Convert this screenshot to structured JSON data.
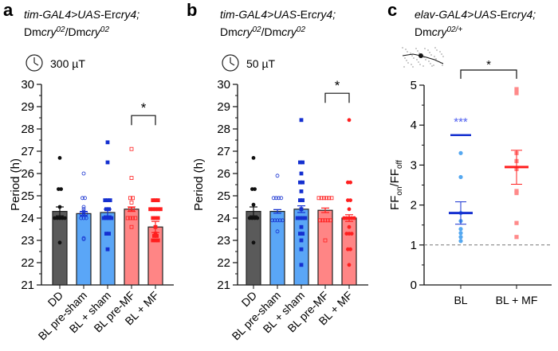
{
  "colors": {
    "grey_bar": "#5a5a5a",
    "blue_bar": "#5aa6f7",
    "red_bar": "#ff8585",
    "blue_pt": "#1530d0",
    "red_pt": "#ff1f1f",
    "light_blue_pt": "#55a8f0",
    "light_red_pt": "#ff8a8a",
    "black": "#111111"
  },
  "chart_data": [
    {
      "type": "bar",
      "panel_label": "a",
      "title_lines": [
        [
          {
            "t": "tim-GAL4>UAS-",
            "i": true
          },
          {
            "t": "Er",
            "i": false
          },
          {
            "t": "cry4;",
            "i": true
          }
        ],
        [
          {
            "t": "Dm",
            "i": false
          },
          {
            "t": "cry",
            "i": true
          },
          {
            "t": "02",
            "i": true,
            "sup": true
          },
          {
            "t": "/Dm",
            "i": false
          },
          {
            "t": "cry",
            "i": true
          },
          {
            "t": "02",
            "i": true,
            "sup": true
          }
        ]
      ],
      "condition_icon": "clock-icon",
      "condition": "300 µT",
      "ylabel": "Period (h)",
      "ylim": [
        21,
        30
      ],
      "yticks": [
        "21",
        "22",
        "23",
        "24",
        "25",
        "26",
        "27",
        "28",
        "29",
        "30"
      ],
      "categories": [
        "DD",
        "BL pre-sham",
        "BL + sham",
        "BL pre-MF",
        "BL + MF"
      ],
      "means": [
        24.3,
        24.2,
        24.25,
        24.4,
        23.6
      ],
      "sem": [
        0.2,
        0.1,
        0.15,
        0.1,
        0.25
      ],
      "points": [
        [
          26.7,
          25.3,
          25.3,
          24.5,
          24.0,
          24.0,
          24.0,
          24.0,
          24.0,
          22.9
        ],
        [
          26.0,
          24.9,
          24.9,
          24.5,
          24.4,
          24.3,
          24.2,
          24.2,
          24.2,
          24.0,
          24.0,
          24.0,
          23.1,
          23.05
        ],
        [
          27.4,
          26.5,
          24.8,
          24.8,
          24.8,
          24.4,
          24.4,
          24.0,
          24.0,
          24.0,
          24.0,
          23.3,
          23.3,
          22.6
        ],
        [
          27.1,
          25.8,
          24.9,
          24.9,
          24.7,
          24.4,
          24.4,
          24.0,
          24.0,
          24.0,
          24.0,
          23.6
        ],
        [
          24.8,
          24.8,
          24.8,
          24.4,
          24.4,
          24.4,
          24.4,
          24.4,
          24.0,
          24.0,
          24.0,
          23.6,
          23.3,
          23.2,
          23.2,
          23.0,
          23.0,
          23.0
        ]
      ],
      "significance": {
        "between": [
          "BL pre-MF",
          "BL + MF"
        ],
        "label": "*",
        "level": 28.6
      }
    },
    {
      "type": "bar",
      "panel_label": "b",
      "title_lines": [
        [
          {
            "t": "tim-GAL4>UAS-",
            "i": true
          },
          {
            "t": "Er",
            "i": false
          },
          {
            "t": "cry4;",
            "i": true
          }
        ],
        [
          {
            "t": "Dm",
            "i": false
          },
          {
            "t": "cry",
            "i": true
          },
          {
            "t": "02",
            "i": true,
            "sup": true
          },
          {
            "t": "/Dm",
            "i": false
          },
          {
            "t": "cry",
            "i": true
          },
          {
            "t": "02",
            "i": true,
            "sup": true
          }
        ]
      ],
      "condition_icon": "clock-icon",
      "condition": "50 µT",
      "ylabel": "Period (h)",
      "ylim": [
        21,
        30
      ],
      "yticks": [
        "21",
        "22",
        "23",
        "24",
        "25",
        "26",
        "27",
        "28",
        "29",
        "30"
      ],
      "categories": [
        "DD",
        "BL pre-sham",
        "BL + sham",
        "BL pre-MF",
        "BL + MF"
      ],
      "means": [
        24.3,
        24.3,
        24.4,
        24.35,
        24.0
      ],
      "sem": [
        0.2,
        0.08,
        0.15,
        0.1,
        0.15
      ],
      "points": [
        [
          26.7,
          25.3,
          25.3,
          24.6,
          24.0,
          24.0,
          24.0,
          24.0,
          22.9
        ],
        [
          25.9,
          24.9,
          24.9,
          24.9,
          24.9,
          23.9,
          23.9,
          23.9,
          23.9,
          23.9,
          23.4
        ],
        [
          28.4,
          26.5,
          26.5,
          26.0,
          25.6,
          25.6,
          25.2,
          24.8,
          24.8,
          24.4,
          24.0,
          24.0,
          24.0,
          24.0,
          23.6,
          23.3,
          23.3,
          23.0,
          22.6,
          21.9
        ],
        [
          24.9,
          24.9,
          24.9,
          24.9,
          24.9,
          24.9,
          23.9,
          23.9,
          23.9,
          23.9,
          23.9,
          23.0
        ],
        [
          28.4,
          25.6,
          25.6,
          24.8,
          24.8,
          24.4,
          24.0,
          24.0,
          24.0,
          24.0,
          24.0,
          23.6,
          23.3,
          23.3,
          23.3,
          22.6,
          22.6,
          21.9
        ]
      ],
      "significance": {
        "between": [
          "BL pre-MF",
          "BL + MF"
        ],
        "label": "*",
        "level": 29.6
      }
    },
    {
      "type": "scatter",
      "panel_label": "c",
      "title_lines": [
        [
          {
            "t": "elav-GAL4>UAS-",
            "i": true
          },
          {
            "t": "Er",
            "i": false
          },
          {
            "t": "cry4;",
            "i": true
          }
        ],
        [
          {
            "t": "Dm",
            "i": false
          },
          {
            "t": "cry",
            "i": true
          },
          {
            "t": "02/+",
            "i": true,
            "sup": true
          }
        ]
      ],
      "ylabel_main": "FF",
      "ylabel_sub1": "on",
      "ylabel_mid": "/FF",
      "ylabel_sub2": "off",
      "ylim": [
        0,
        5
      ],
      "yticks": [
        "0",
        "1",
        "2",
        "3",
        "4",
        "5"
      ],
      "categories": [
        "BL",
        "BL + MF"
      ],
      "means": [
        1.8,
        2.95
      ],
      "sem_range": [
        [
          1.52,
          2.08
        ],
        [
          2.52,
          3.37
        ]
      ],
      "points": [
        [
          3.3,
          2.7,
          1.8,
          1.6,
          1.4,
          1.3,
          1.2,
          1.1
        ],
        [
          4.9,
          4.8,
          3.3,
          3.1,
          2.9,
          2.35,
          2.3,
          1.55,
          1.2
        ]
      ],
      "extra_line": {
        "category": "BL",
        "value": 3.75,
        "label": "***"
      },
      "baseline": 1,
      "significance": {
        "between": [
          "BL",
          "BL + MF"
        ],
        "label": "*"
      }
    }
  ]
}
